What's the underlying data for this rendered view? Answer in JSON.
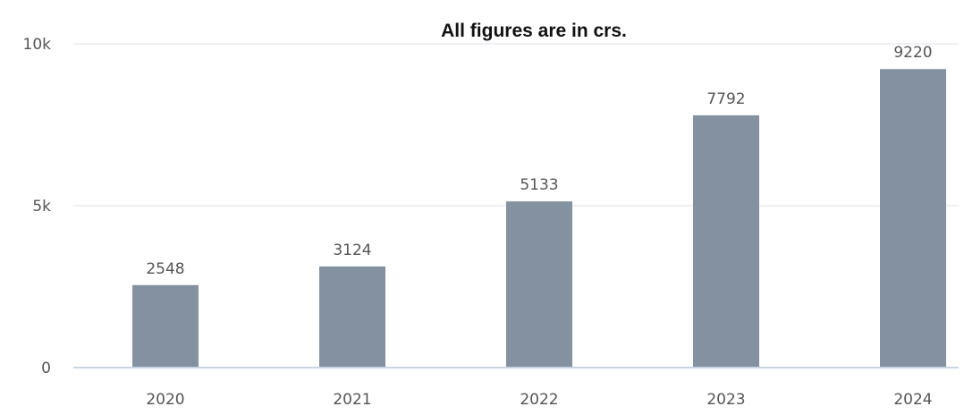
{
  "chart_data": {
    "type": "bar",
    "title": "All figures are in crs.",
    "categories": [
      "2020",
      "2021",
      "2022",
      "2023",
      "2024"
    ],
    "values": [
      2548,
      3124,
      5133,
      7792,
      9220
    ],
    "xlabel": "",
    "ylabel": "",
    "ylim": [
      0,
      10000
    ],
    "yticks": [
      {
        "value": 0,
        "label": "0"
      },
      {
        "value": 5000,
        "label": "5k"
      },
      {
        "value": 10000,
        "label": "10k"
      }
    ],
    "grid": true,
    "legend": "none",
    "data_labels": true
  },
  "colors": {
    "bar": "#8391a1",
    "grid": "#e8ecf1",
    "axis": "#c8d4e3"
  }
}
